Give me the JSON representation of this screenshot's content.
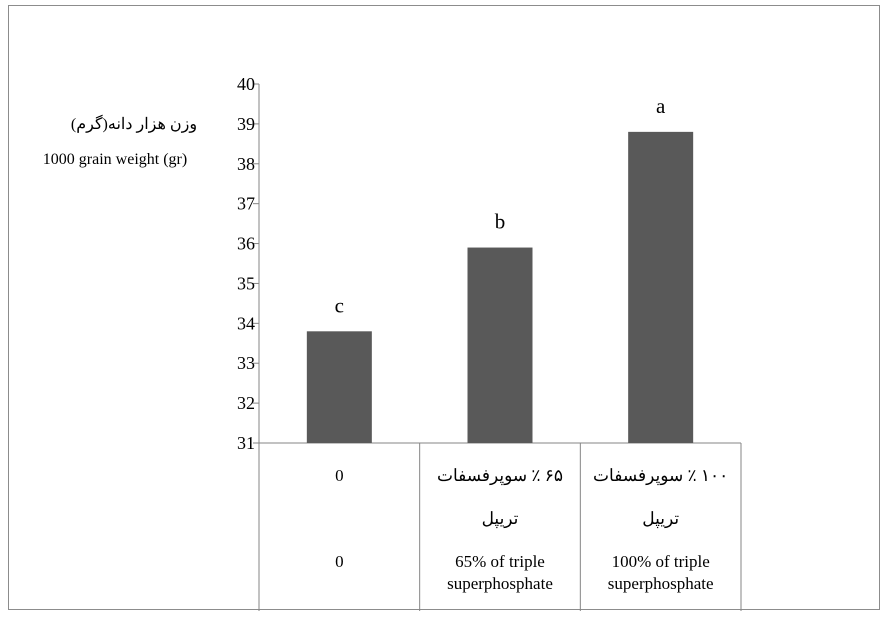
{
  "chart_data": {
    "type": "bar",
    "ylabel_fa": "وزن هزار دانه(گرم)",
    "ylabel_en": "1000 grain weight (gr)",
    "ylim": [
      31,
      40
    ],
    "yticks": [
      31,
      32,
      33,
      34,
      35,
      36,
      37,
      38,
      39,
      40
    ],
    "grid": false,
    "legend": "none",
    "bar_color": "#595959",
    "categories": [
      {
        "fa_line1": "0",
        "fa_line2": "",
        "en_line1": "0",
        "en_line2": ""
      },
      {
        "fa_line1": "۶۵ ٪ سوپرفسفات",
        "fa_line2": "تریپل",
        "en_line1": "65% of triple",
        "en_line2": "superphosphate"
      },
      {
        "fa_line1": "۱۰۰ ٪ سوپرفسفات",
        "fa_line2": "تریپل",
        "en_line1": "100% of triple",
        "en_line2": "superphosphate"
      }
    ],
    "values": [
      33.8,
      35.9,
      38.8
    ],
    "data_labels": [
      "c",
      "b",
      "a"
    ]
  }
}
